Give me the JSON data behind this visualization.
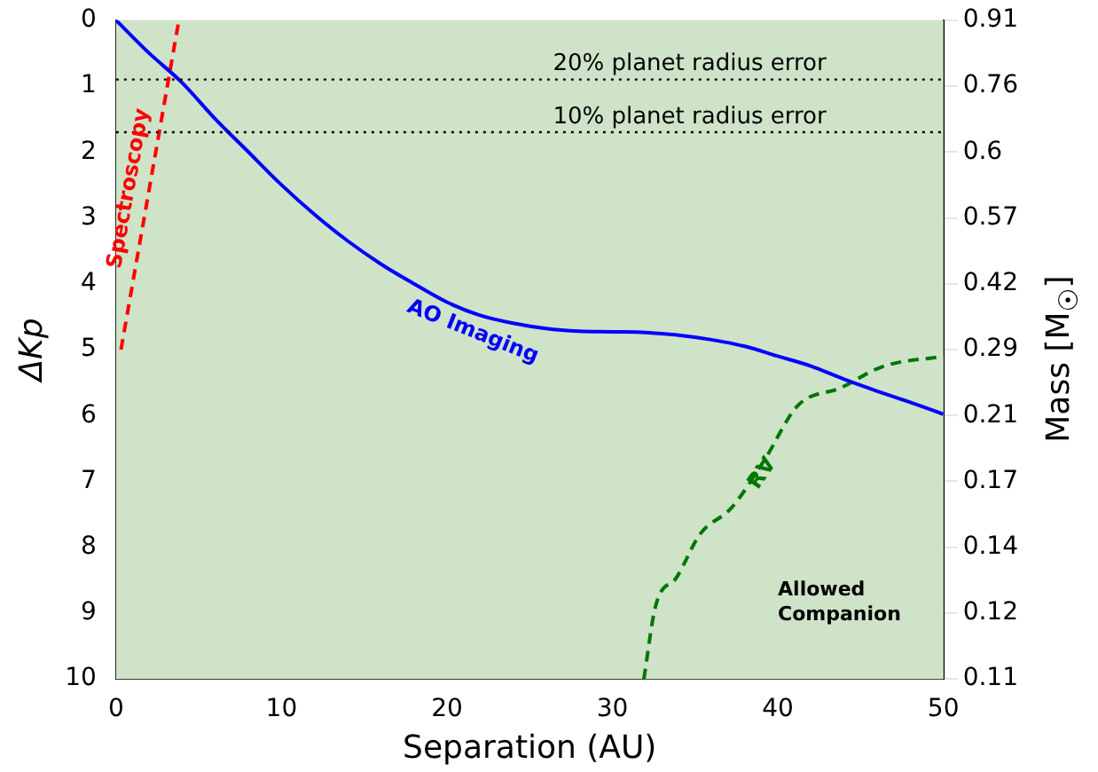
{
  "chart_data": {
    "type": "line",
    "xlabel": "Separation (AU)",
    "ylabel": "ΔKp",
    "y2label": "Mass [M$_{☉}$]",
    "xlim": [
      0,
      50
    ],
    "xticks": [
      0,
      10,
      20,
      30,
      40,
      50
    ],
    "ylim": [
      10,
      0
    ],
    "yticks": [
      0,
      1,
      2,
      3,
      4,
      5,
      6,
      7,
      8,
      9,
      10
    ],
    "y2_categories": [
      "0.91",
      "0.76",
      "0.6",
      "0.57",
      "0.42",
      "0.29",
      "0.21",
      "0.17",
      "0.14",
      "0.12",
      "0.11"
    ],
    "grid": false,
    "legend": false,
    "marker": "none",
    "series": [
      {
        "name": "AO Imaging",
        "color": "#0000ff",
        "line_style": "solid",
        "x": [
          0,
          2,
          4,
          6,
          8,
          10,
          12,
          14,
          16,
          18,
          20,
          22,
          24,
          26,
          28,
          30,
          32,
          34,
          36,
          38,
          40,
          42,
          44,
          46,
          48,
          50
        ],
        "values": [
          0,
          0.5,
          0.95,
          1.5,
          2.0,
          2.5,
          2.95,
          3.35,
          3.7,
          4.0,
          4.28,
          4.48,
          4.6,
          4.68,
          4.72,
          4.73,
          4.74,
          4.78,
          4.85,
          4.95,
          5.1,
          5.25,
          5.45,
          5.63,
          5.8,
          5.98
        ]
      },
      {
        "name": "Spectroscopy",
        "color": "#ff0000",
        "line_style": "dashed",
        "x": [
          0.3,
          3.8
        ],
        "values": [
          5.0,
          0
        ]
      },
      {
        "name": "RV",
        "color": "#007700",
        "line_style": "dashed",
        "x": [
          31.9,
          32.6,
          33.9,
          35.3,
          37.2,
          39.2,
          41.2,
          43.8,
          46.3,
          50
        ],
        "values": [
          10,
          8.9,
          8.45,
          7.8,
          7.4,
          6.67,
          5.85,
          5.58,
          5.26,
          5.1
        ]
      }
    ],
    "ref_lines": [
      {
        "axis": "y",
        "value": 0.9,
        "label": "20% planet radius error",
        "color": "#000000",
        "line_style": "dotted"
      },
      {
        "axis": "y",
        "value": 1.7,
        "label": "10% planet radius error",
        "color": "#000000",
        "line_style": "dotted"
      }
    ],
    "bands": [
      {
        "axis": "x",
        "from": 0,
        "to": 50,
        "color": "#cfe3c8"
      }
    ],
    "annotations": [
      "Allowed Companion"
    ]
  }
}
